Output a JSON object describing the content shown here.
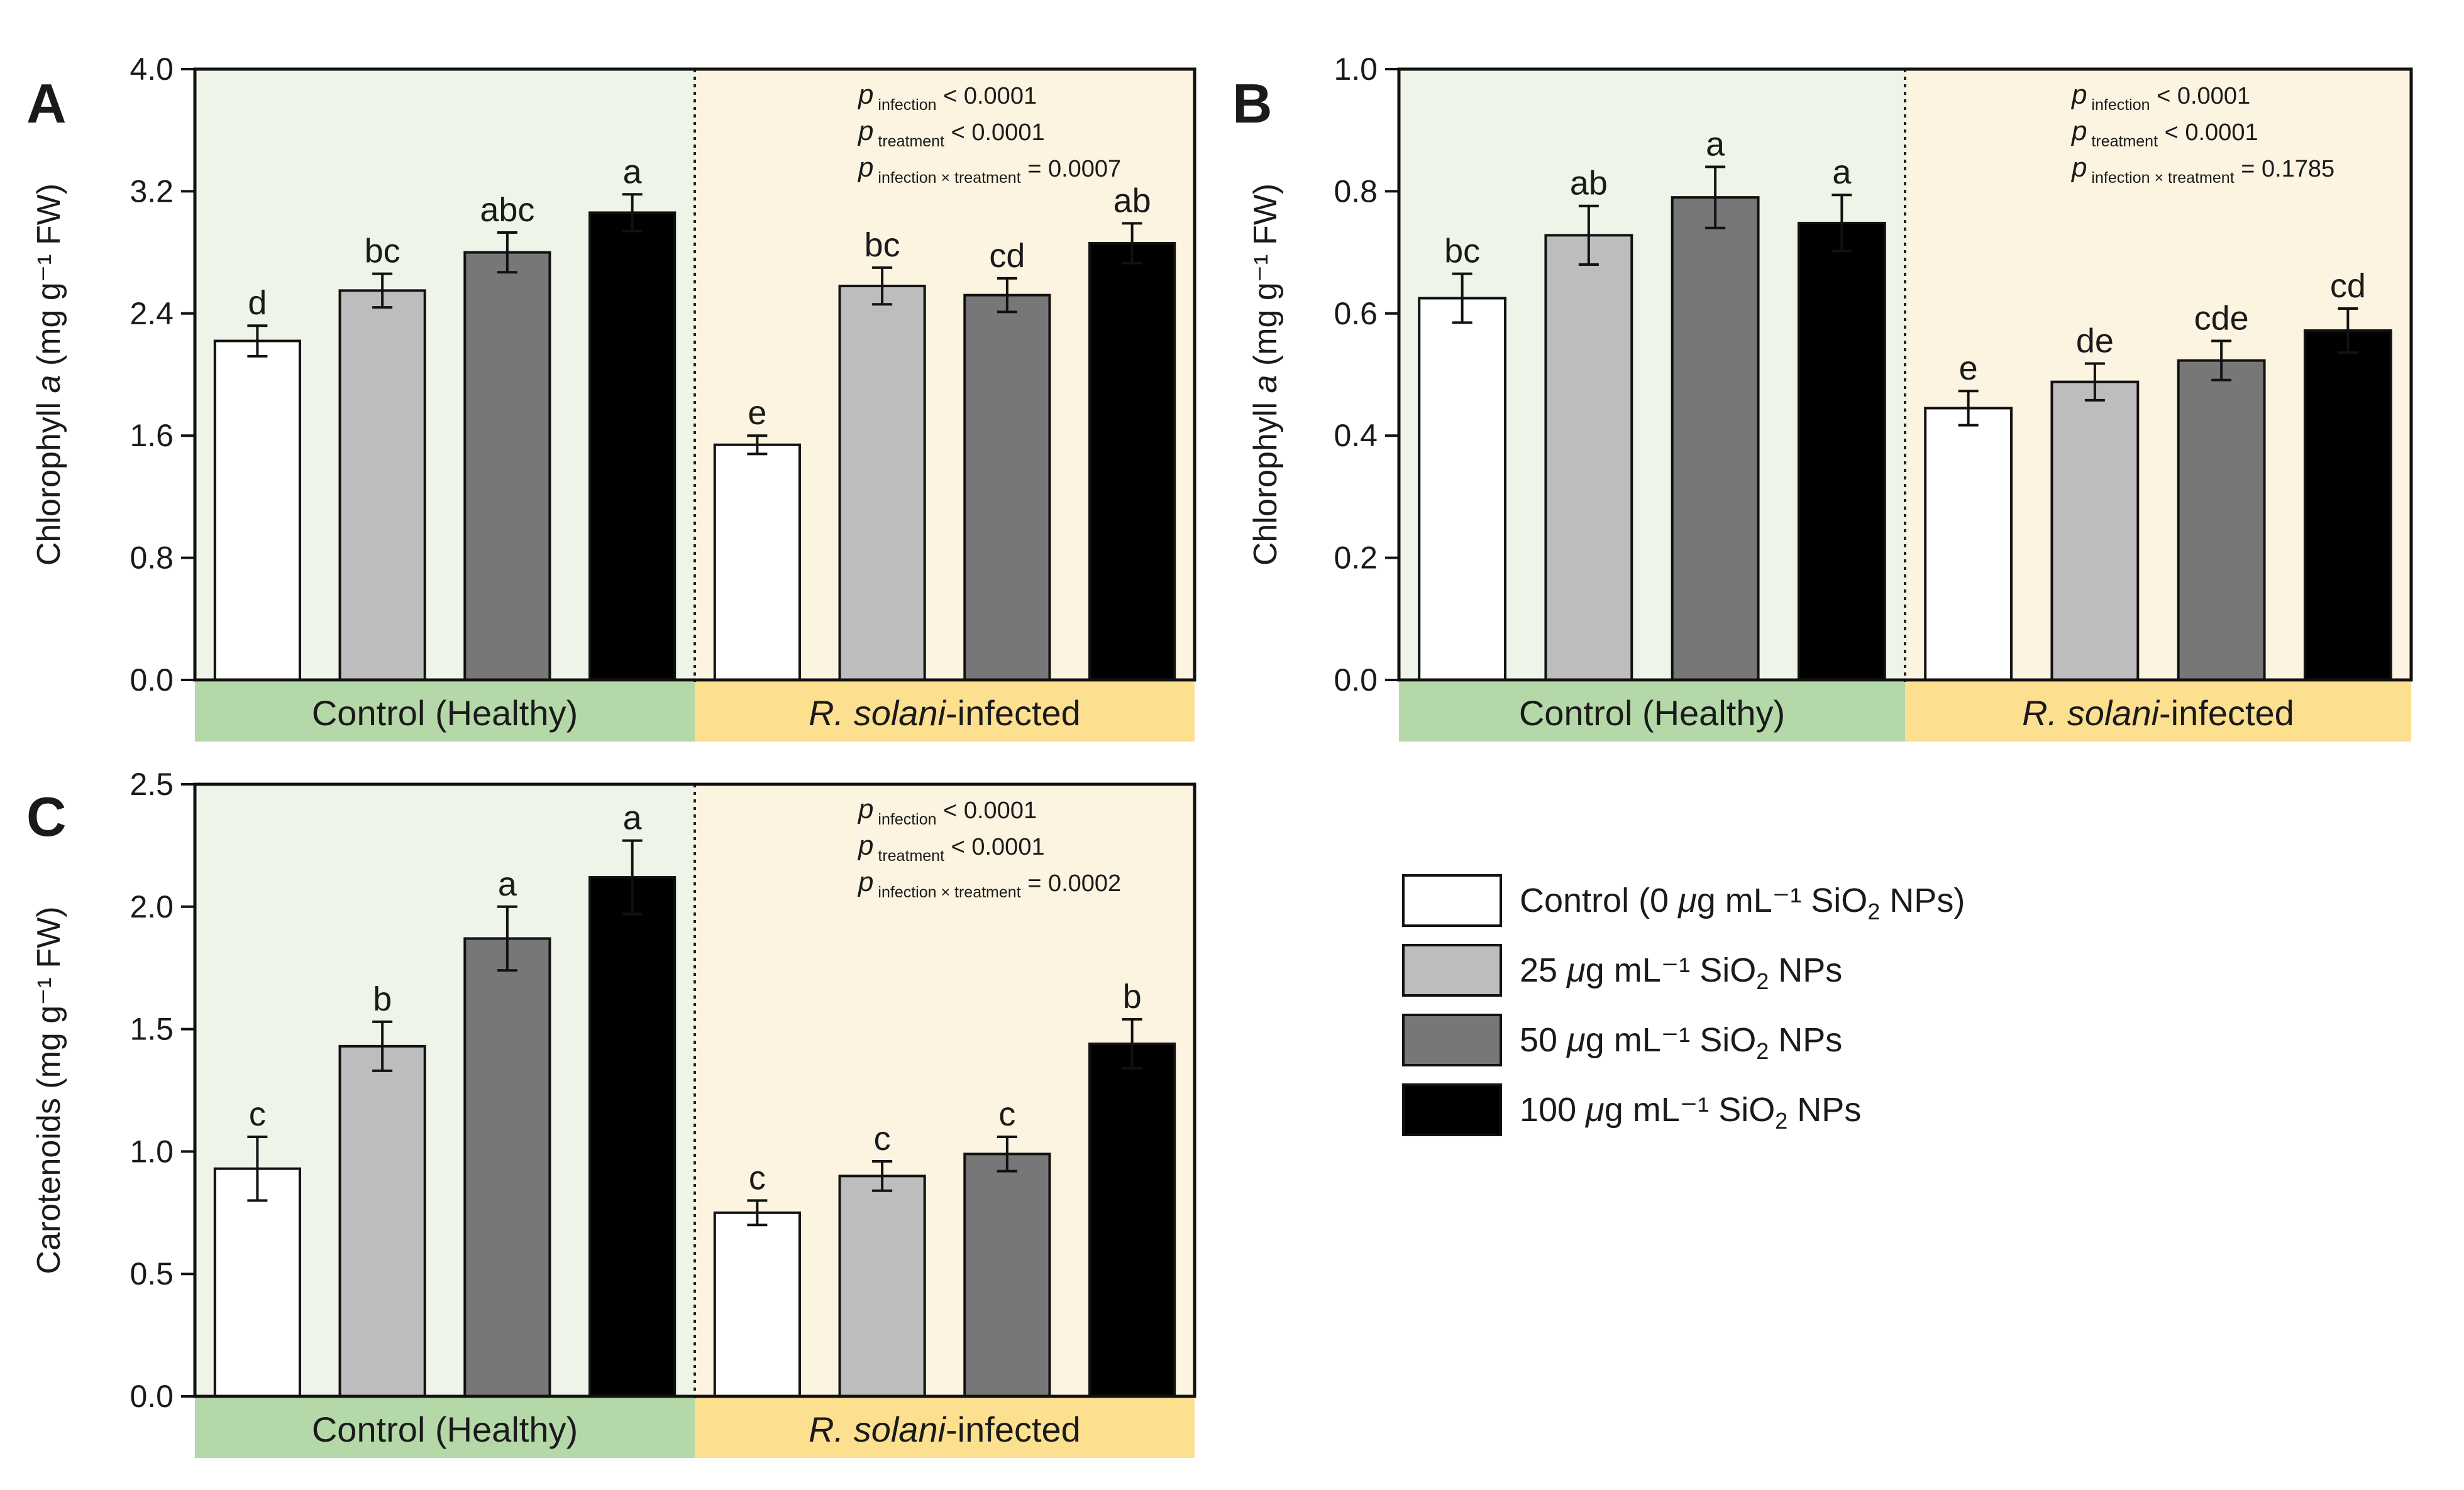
{
  "chart_data": [
    {
      "id": "A",
      "type": "bar",
      "panel_label": "A",
      "ylabel_pre": "Chlorophyll ",
      "ylabel_italic": "a",
      "ylabel_post": " (mg g⁻¹ FW)",
      "ylim": [
        0,
        4.0
      ],
      "yticks": [
        "0.0",
        "0.8",
        "1.6",
        "2.4",
        "3.2",
        "4.0"
      ],
      "yticks_values": [
        0,
        0.8,
        1.6,
        2.4,
        3.2,
        4.0
      ],
      "groups": [
        {
          "label": "Control (Healthy)",
          "label_italic": "",
          "label_rest": "",
          "color": "#b5d8a8",
          "bg": "#eef5e8",
          "values": [
            2.22,
            2.55,
            2.8,
            3.06
          ],
          "errors": [
            0.1,
            0.11,
            0.13,
            0.12
          ],
          "letters": [
            "d",
            "bc",
            "abc",
            "a"
          ]
        },
        {
          "label": "",
          "label_italic": "R. solani",
          "label_rest": "-infected",
          "color": "#fde08f",
          "bg": "#fdf3e1",
          "values": [
            1.54,
            2.58,
            2.52,
            2.86
          ],
          "errors": [
            0.06,
            0.12,
            0.11,
            0.13
          ],
          "letters": [
            "e",
            "bc",
            "cd",
            "ab"
          ]
        }
      ],
      "stats": [
        {
          "sub": "infection",
          "text": "< 0.0001"
        },
        {
          "sub": "treatment",
          "text": "< 0.0001"
        },
        {
          "sub": "infection × treatment",
          "text": "= 0.0007"
        }
      ]
    },
    {
      "id": "B",
      "type": "bar",
      "panel_label": "B",
      "ylabel_pre": "Chlorophyll ",
      "ylabel_italic": "a",
      "ylabel_post": " (mg g⁻¹ FW)",
      "ylim": [
        0,
        1.0
      ],
      "yticks": [
        "0.0",
        "0.2",
        "0.4",
        "0.6",
        "0.8",
        "1.0"
      ],
      "yticks_values": [
        0,
        0.2,
        0.4,
        0.6,
        0.8,
        1.0
      ],
      "groups": [
        {
          "label": "Control (Healthy)",
          "label_italic": "",
          "label_rest": "",
          "color": "#b5d8a8",
          "bg": "#eef5e8",
          "values": [
            0.625,
            0.728,
            0.79,
            0.748
          ],
          "errors": [
            0.04,
            0.048,
            0.05,
            0.046
          ],
          "letters": [
            "bc",
            "ab",
            "a",
            "a"
          ]
        },
        {
          "label": "",
          "label_italic": "R. solani",
          "label_rest": "-infected",
          "color": "#fde08f",
          "bg": "#fdf3e1",
          "values": [
            0.445,
            0.488,
            0.523,
            0.572
          ],
          "errors": [
            0.028,
            0.03,
            0.032,
            0.036
          ],
          "letters": [
            "e",
            "de",
            "cde",
            "cd"
          ]
        }
      ],
      "stats": [
        {
          "sub": "infection",
          "text": "< 0.0001"
        },
        {
          "sub": "treatment",
          "text": "< 0.0001"
        },
        {
          "sub": "infection × treatment",
          "text": "= 0.1785"
        }
      ]
    },
    {
      "id": "C",
      "type": "bar",
      "panel_label": "C",
      "ylabel_pre": "Carotenoids (mg g⁻¹ FW)",
      "ylabel_italic": "",
      "ylabel_post": "",
      "ylim": [
        0,
        2.5
      ],
      "yticks": [
        "0.0",
        "0.5",
        "1.0",
        "1.5",
        "2.0",
        "2.5"
      ],
      "yticks_values": [
        0,
        0.5,
        1.0,
        1.5,
        2.0,
        2.5
      ],
      "groups": [
        {
          "label": "Control (Healthy)",
          "label_italic": "",
          "label_rest": "",
          "color": "#b5d8a8",
          "bg": "#eef5e8",
          "values": [
            0.93,
            1.43,
            1.87,
            2.12
          ],
          "errors": [
            0.13,
            0.1,
            0.13,
            0.15
          ],
          "letters": [
            "c",
            "b",
            "a",
            "a"
          ]
        },
        {
          "label": "",
          "label_italic": "R. solani",
          "label_rest": "-infected",
          "color": "#fde08f",
          "bg": "#fdf3e1",
          "values": [
            0.75,
            0.9,
            0.99,
            1.44
          ],
          "errors": [
            0.05,
            0.06,
            0.07,
            0.1
          ],
          "letters": [
            "c",
            "c",
            "c",
            "b"
          ]
        }
      ],
      "stats": [
        {
          "sub": "infection",
          "text": "< 0.0001"
        },
        {
          "sub": "treatment",
          "text": "< 0.0001"
        },
        {
          "sub": "infection × treatment",
          "text": "= 0.0002"
        }
      ]
    }
  ],
  "legend": [
    {
      "color": "#ffffff",
      "pre": "Control (0 ",
      "mu": "μ",
      "mid": "g mL⁻¹ SiO",
      "sub": "2",
      "post": " NPs)"
    },
    {
      "color": "#bdbdbd",
      "pre": "25 ",
      "mu": "μ",
      "mid": "g mL⁻¹ SiO",
      "sub": "2",
      "post": " NPs"
    },
    {
      "color": "#777777",
      "pre": "50 ",
      "mu": "μ",
      "mid": "g mL⁻¹ SiO",
      "sub": "2",
      "post": " NPs"
    },
    {
      "color": "#000000",
      "pre": "100 ",
      "mu": "μ",
      "mid": "g mL⁻¹ SiO",
      "sub": "2",
      "post": " NPs"
    }
  ],
  "bar_colors": [
    "#ffffff",
    "#bdbdbd",
    "#777777",
    "#000000"
  ],
  "stat_symbol": "p"
}
